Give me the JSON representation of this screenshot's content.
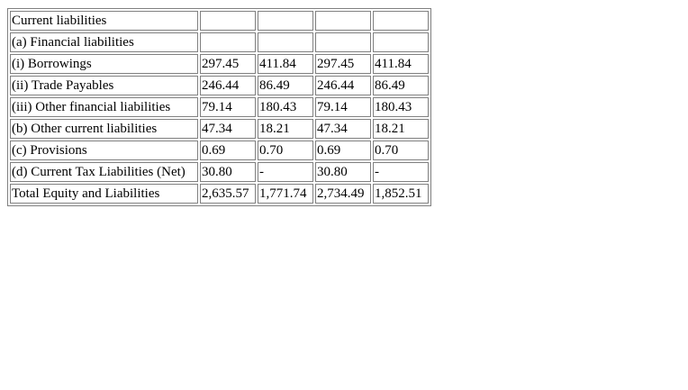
{
  "table": {
    "rows": [
      {
        "label": "Current liabilities",
        "values": [
          "",
          "",
          "",
          ""
        ]
      },
      {
        "label": "(a) Financial liabilities",
        "values": [
          "",
          "",
          "",
          ""
        ]
      },
      {
        "label": "(i) Borrowings",
        "values": [
          "297.45",
          "411.84",
          "297.45",
          "411.84"
        ]
      },
      {
        "label": "(ii) Trade Payables",
        "values": [
          "246.44",
          "86.49",
          "246.44",
          "86.49"
        ]
      },
      {
        "label": "(iii) Other financial liabilities",
        "values": [
          "79.14",
          "180.43",
          "79.14",
          "180.43"
        ]
      },
      {
        "label": "(b) Other current liabilities",
        "values": [
          "47.34",
          "18.21",
          "47.34",
          "18.21"
        ]
      },
      {
        "label": "(c) Provisions",
        "values": [
          "0.69",
          "0.70",
          "0.69",
          "0.70"
        ]
      },
      {
        "label": "(d) Current Tax Liabilities (Net)",
        "values": [
          "30.80",
          "-",
          "30.80",
          "-"
        ]
      },
      {
        "label": "Total Equity and Liabilities",
        "values": [
          "2,635.57",
          "1,771.74",
          "2,734.49",
          "1,852.51"
        ]
      }
    ]
  }
}
